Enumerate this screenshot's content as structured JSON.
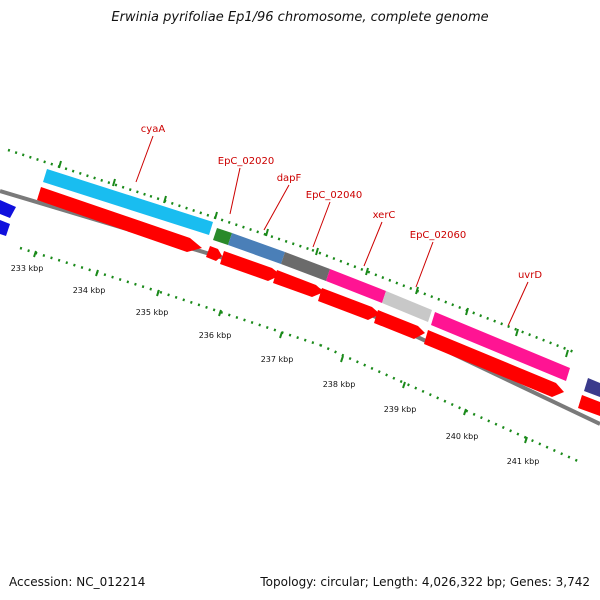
{
  "title": "Erwinia pyrifoliae Ep1/96 chromosome, complete genome",
  "accession": "Accession: NC_012214",
  "summary": "Topology: circular; Length: 4,026,322 bp; Genes: 3,742",
  "colors": {
    "backbone": "#7a7a7a",
    "tick": "#1a8a1a",
    "label": "#cc0000",
    "cds": "#ff0000"
  },
  "scale_labels": [
    "233 kbp",
    "234 kbp",
    "235 kbp",
    "236 kbp",
    "237 kbp",
    "238 kbp",
    "239 kbp",
    "240 kbp",
    "241 kbp"
  ],
  "genes": [
    {
      "name": "cyaA",
      "color": "#19bdf0"
    },
    {
      "name": "EpC_02020",
      "color": "#2a8a2a"
    },
    {
      "name": "dapF",
      "color": "#4a7fb8"
    },
    {
      "name": "EpC_02040",
      "color": "#6b6b6b"
    },
    {
      "name": "xerC",
      "color": "#ff1493"
    },
    {
      "name": "EpC_02060",
      "color": "#c8c8c8"
    },
    {
      "name": "uvrD",
      "color": "#ff1493"
    }
  ]
}
